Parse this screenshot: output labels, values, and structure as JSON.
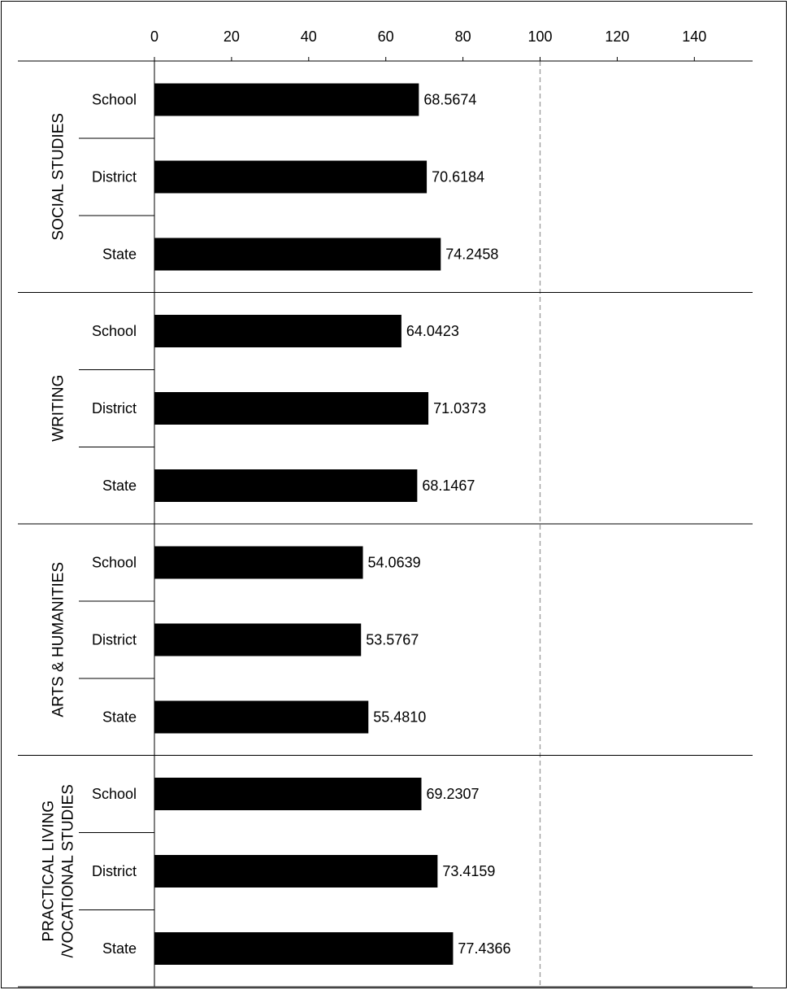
{
  "chart_data": {
    "type": "bar",
    "orientation": "horizontal",
    "title": "",
    "xlabel": "",
    "ylabel": "",
    "xlim": [
      0,
      155
    ],
    "x_ticks": [
      0,
      20,
      40,
      60,
      80,
      100,
      120,
      140
    ],
    "x_tick_labels": [
      "0",
      "20",
      "40",
      "60",
      "80",
      "100",
      "120",
      "140"
    ],
    "reference_line": 100,
    "grid": false,
    "legend": null,
    "bar_color": "#000000",
    "reference_line_color": "#999999",
    "groups": [
      {
        "name": "SOCIAL STUDIES",
        "label_lines": [
          "SOCIAL STUDIES"
        ],
        "categories": [
          "School",
          "District",
          "State"
        ],
        "values": [
          68.5674,
          70.6184,
          74.2458
        ],
        "value_labels": [
          "68.5674",
          "70.6184",
          "74.2458"
        ]
      },
      {
        "name": "WRITING",
        "label_lines": [
          "WRITING"
        ],
        "categories": [
          "School",
          "District",
          "State"
        ],
        "values": [
          64.0423,
          71.0373,
          68.1467
        ],
        "value_labels": [
          "64.0423",
          "71.0373",
          "68.1467"
        ]
      },
      {
        "name": "ARTS & HUMANITIES",
        "label_lines": [
          "ARTS & HUMANITIES"
        ],
        "categories": [
          "School",
          "District",
          "State"
        ],
        "values": [
          54.0639,
          53.5767,
          55.481
        ],
        "value_labels": [
          "54.0639",
          "53.5767",
          "55.4810"
        ]
      },
      {
        "name": "PRACTICAL LIVING /VOCATIONAL STUDIES",
        "label_lines": [
          "PRACTICAL LIVING",
          "/VOCATIONAL STUDIES"
        ],
        "categories": [
          "School",
          "District",
          "State"
        ],
        "values": [
          69.2307,
          73.4159,
          77.4366
        ],
        "value_labels": [
          "69.2307",
          "73.4159",
          "77.4366"
        ]
      }
    ]
  }
}
